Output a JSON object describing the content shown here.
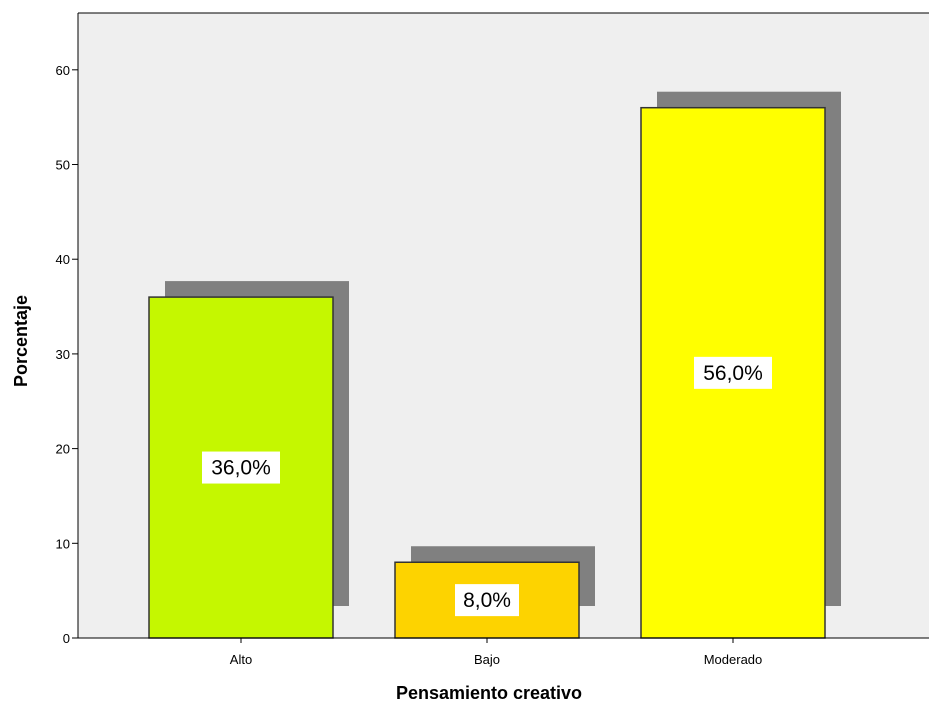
{
  "chart_data": {
    "type": "bar",
    "categories": [
      "Alto",
      "Bajo",
      "Moderado"
    ],
    "values": [
      36.0,
      8.0,
      56.0
    ],
    "data_labels": [
      "36,0%",
      "8,0%",
      "56,0%"
    ],
    "xlabel": "Pensamiento creativo",
    "ylabel": "Porcentaje",
    "ylim": [
      0,
      66
    ],
    "yticks": [
      0,
      10,
      20,
      30,
      40,
      50,
      60
    ],
    "grid": false,
    "legend": "none",
    "colors": {
      "bars": [
        "#c5f700",
        "#fdd300",
        "#ffff00"
      ],
      "shadow": "#808080",
      "plot_background": "#efefef",
      "bar_outline": "#333333"
    }
  }
}
